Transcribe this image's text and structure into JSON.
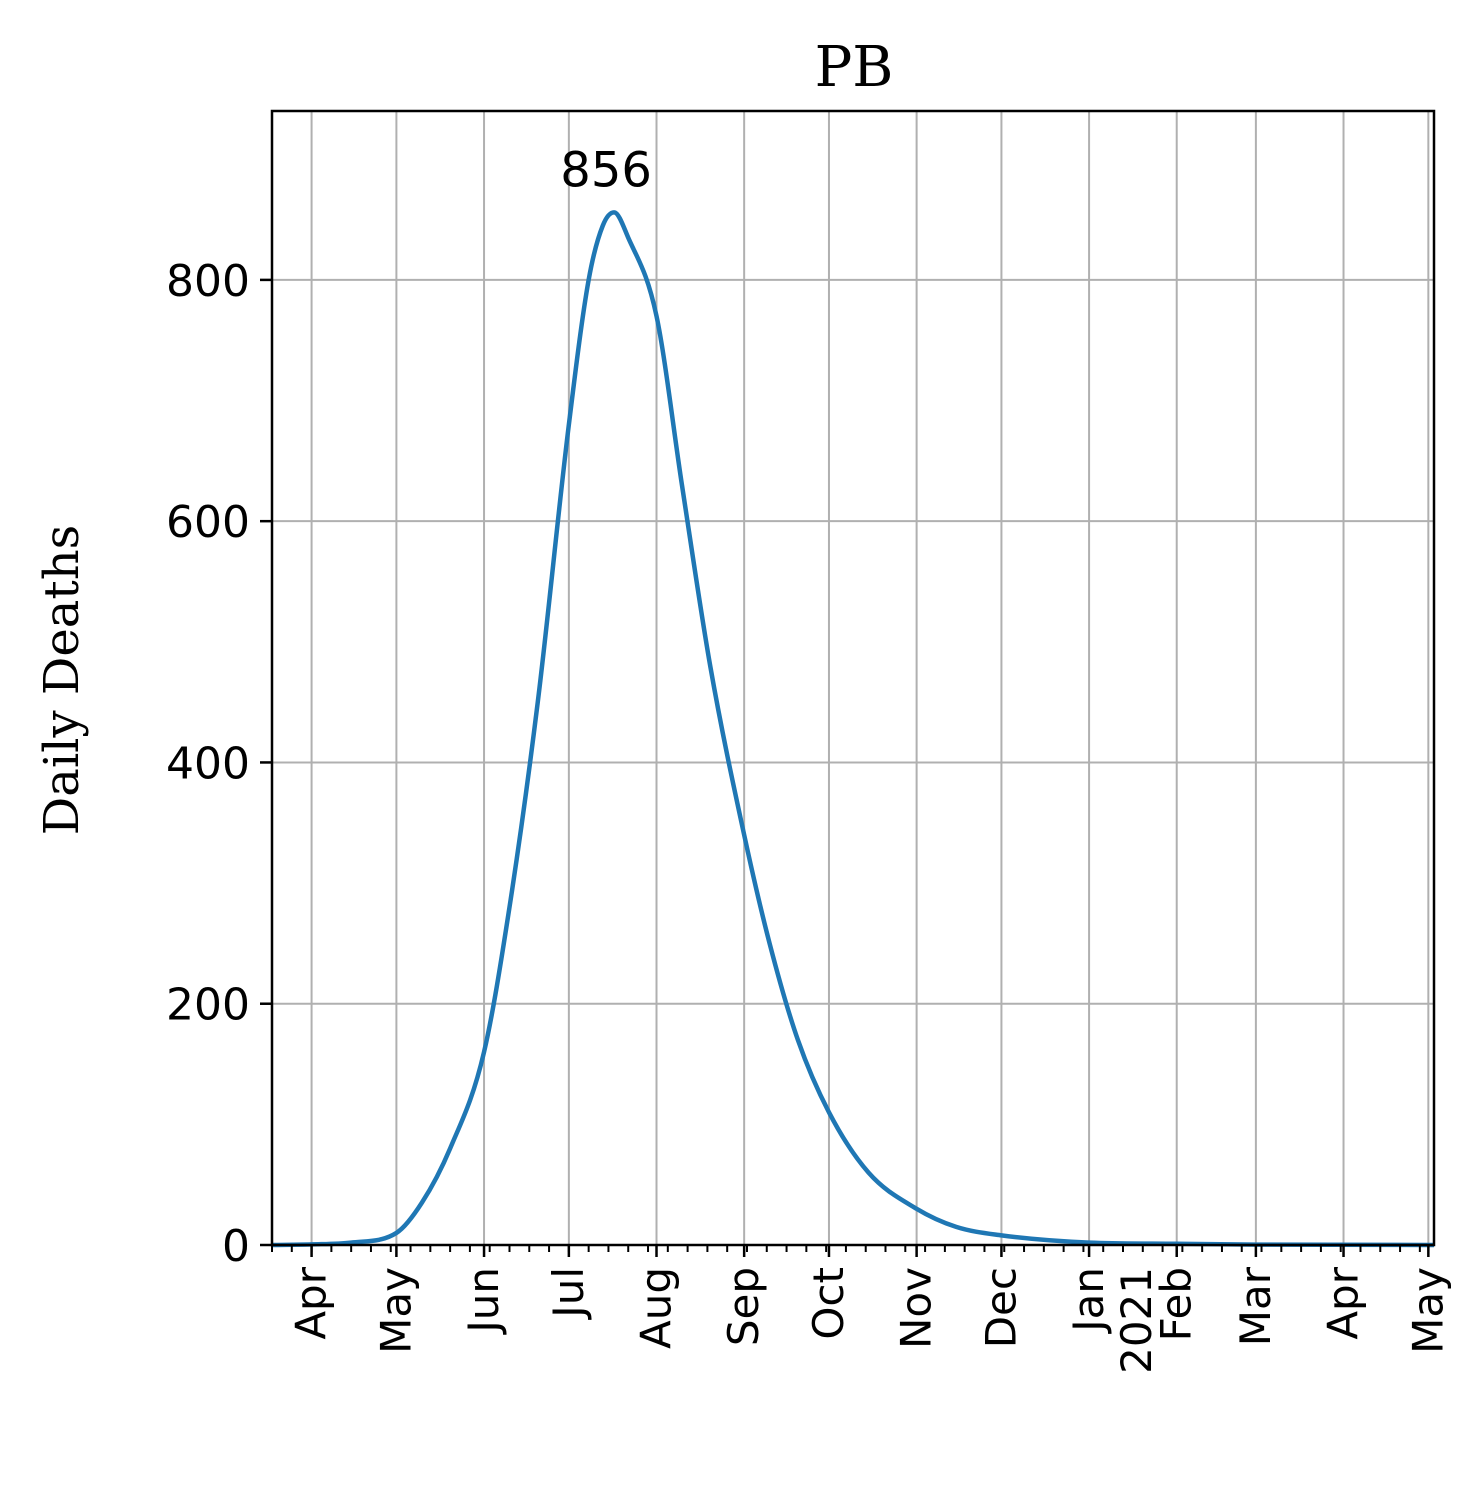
{
  "chart_data": {
    "type": "line",
    "title": "PB",
    "xlabel": "",
    "ylabel": "Daily Deaths",
    "ylim": [
      0,
      940
    ],
    "yticks": [
      0,
      200,
      400,
      600,
      800
    ],
    "xlim": [
      "2020-03-18",
      "2021-05-03"
    ],
    "xticks": [
      {
        "date": "2020-04-01",
        "label": "Apr"
      },
      {
        "date": "2020-05-01",
        "label": "May"
      },
      {
        "date": "2020-06-01",
        "label": "Jun"
      },
      {
        "date": "2020-07-01",
        "label": "Jul"
      },
      {
        "date": "2020-08-01",
        "label": "Aug"
      },
      {
        "date": "2020-09-01",
        "label": "Sep"
      },
      {
        "date": "2020-10-01",
        "label": "Oct"
      },
      {
        "date": "2020-11-01",
        "label": "Nov"
      },
      {
        "date": "2020-12-01",
        "label": "Dec"
      },
      {
        "date": "2021-01-01",
        "label": "Jan\n2021"
      },
      {
        "date": "2021-02-01",
        "label": "Feb"
      },
      {
        "date": "2021-03-01",
        "label": "Mar"
      },
      {
        "date": "2021-04-01",
        "label": "Apr"
      },
      {
        "date": "2021-05-01",
        "label": "May"
      }
    ],
    "grid": true,
    "series": [
      {
        "color": "#1f77b4",
        "points": [
          [
            "2020-03-18",
            0
          ],
          [
            "2020-04-01",
            0.5
          ],
          [
            "2020-04-15",
            2
          ],
          [
            "2020-05-01",
            10
          ],
          [
            "2020-05-10",
            35
          ],
          [
            "2020-05-20",
            80
          ],
          [
            "2020-06-01",
            160
          ],
          [
            "2020-06-10",
            280
          ],
          [
            "2020-06-20",
            450
          ],
          [
            "2020-07-01",
            680
          ],
          [
            "2020-07-08",
            800
          ],
          [
            "2020-07-13",
            845
          ],
          [
            "2020-07-17",
            856
          ],
          [
            "2020-07-22",
            835
          ],
          [
            "2020-08-01",
            770
          ],
          [
            "2020-08-10",
            630
          ],
          [
            "2020-08-20",
            480
          ],
          [
            "2020-09-01",
            340
          ],
          [
            "2020-09-10",
            250
          ],
          [
            "2020-09-20",
            170
          ],
          [
            "2020-10-01",
            110
          ],
          [
            "2020-10-15",
            60
          ],
          [
            "2020-11-01",
            30
          ],
          [
            "2020-11-15",
            15
          ],
          [
            "2020-12-01",
            8
          ],
          [
            "2021-01-01",
            2
          ],
          [
            "2021-02-01",
            1
          ],
          [
            "2021-03-01",
            0.3
          ],
          [
            "2021-05-03",
            0
          ]
        ]
      }
    ],
    "annotations": [
      {
        "text": "856",
        "x": "2020-07-17",
        "y": 856
      }
    ]
  }
}
